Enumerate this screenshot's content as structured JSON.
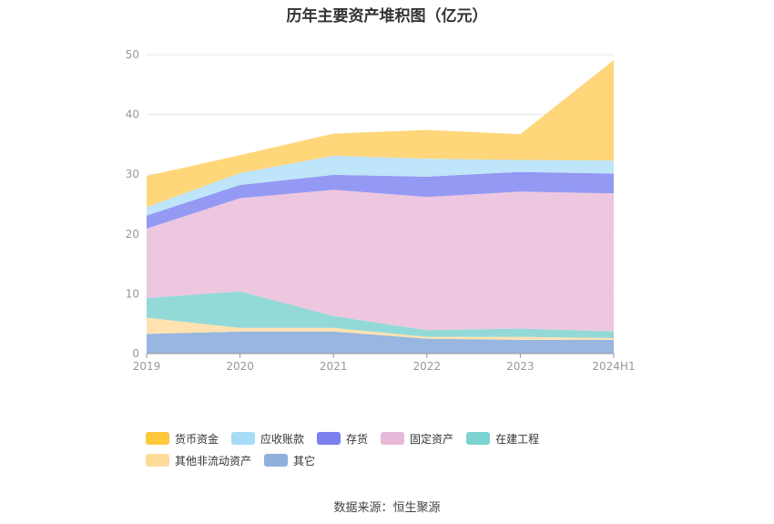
{
  "chart_data": {
    "type": "area",
    "stacked": true,
    "title": "历年主要资产堆积图（亿元）",
    "categories": [
      "2019",
      "2020",
      "2021",
      "2022",
      "2023",
      "2024H1"
    ],
    "ylim": [
      0,
      50
    ],
    "yticks": [
      0,
      10,
      20,
      30,
      40,
      50
    ],
    "grid": true,
    "legend_position": "bottom",
    "series": [
      {
        "name": "其它",
        "color": "#8fb0dc",
        "values": [
          3.3,
          3.7,
          3.7,
          2.5,
          2.3,
          2.3
        ]
      },
      {
        "name": "其他非流动资产",
        "color": "#ffe0a8",
        "values": [
          2.7,
          0.6,
          0.6,
          0.3,
          0.5,
          0.3
        ]
      },
      {
        "name": "在建工程",
        "color": "#8ad6d4",
        "values": [
          3.3,
          6.1,
          2.0,
          1.1,
          1.4,
          1.1
        ]
      },
      {
        "name": "固定资产",
        "color": "#ebc2dd",
        "values": [
          11.6,
          15.6,
          21.1,
          22.3,
          22.9,
          23.1
        ]
      },
      {
        "name": "存货",
        "color": "#8b90f2",
        "values": [
          2.2,
          2.2,
          2.5,
          3.4,
          3.3,
          3.3
        ]
      },
      {
        "name": "应收账款",
        "color": "#b9e3f8",
        "values": [
          1.4,
          2.0,
          3.2,
          3.0,
          2.0,
          2.2
        ]
      },
      {
        "name": "货币资金",
        "color": "#ffd36e",
        "values": [
          5.2,
          3.0,
          3.7,
          4.8,
          4.3,
          16.8
        ]
      }
    ]
  },
  "legend_order": [
    "货币资金",
    "应收账款",
    "存货",
    "固定资产",
    "在建工程",
    "其他非流动资产",
    "其它"
  ],
  "legend_colors": {
    "货币资金": "#ffc93c",
    "应收账款": "#a6dcf7",
    "存货": "#7c7ff0",
    "固定资产": "#e8b8d8",
    "在建工程": "#7dd3d1",
    "其他非流动资产": "#ffdb9a",
    "其它": "#8fb0dc"
  },
  "source_note": "数据来源：恒生聚源"
}
